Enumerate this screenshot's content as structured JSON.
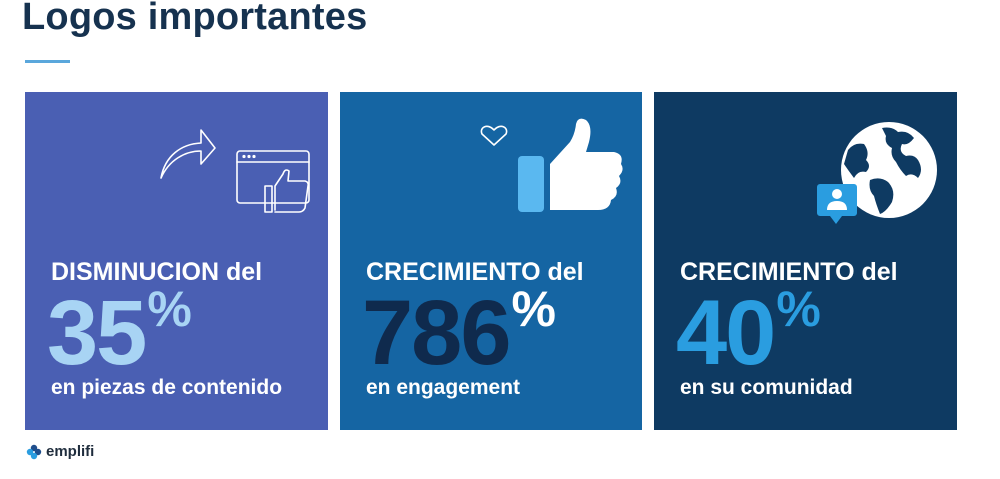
{
  "page": {
    "title": "Logos importantes",
    "accent_color": "#5aa7dc"
  },
  "cards": [
    {
      "heading": "DISMINUCION del",
      "figure": "35",
      "unit": "%",
      "caption": "en piezas de contenido",
      "background": "#4a5fb3",
      "figure_color": "#a8d4f4",
      "icon": "share-arrow-and-like-window-icon"
    },
    {
      "heading": "CRECIMIENTO del",
      "figure": "786",
      "unit": "%",
      "caption": "en engagement",
      "background": "#1565a3",
      "figure_color": "#0f2a4d",
      "icon": "thumbs-up-with-heart-icon"
    },
    {
      "heading": "CRECIMIENTO del",
      "figure": "40",
      "unit": "%",
      "caption": "en su comunidad",
      "background": "#0e3a62",
      "figure_color": "#2a9de0",
      "icon": "globe-with-user-icon"
    }
  ],
  "footer": {
    "brand": "emplifi"
  }
}
